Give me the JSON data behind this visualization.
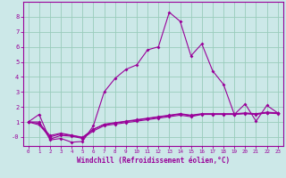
{
  "xlabel": "Windchill (Refroidissement éolien,°C)",
  "bg_color": "#cce8e8",
  "line_color": "#990099",
  "grid_color": "#99ccbb",
  "x_data": [
    0,
    1,
    2,
    3,
    4,
    5,
    6,
    7,
    8,
    9,
    10,
    11,
    12,
    13,
    14,
    15,
    16,
    17,
    18,
    19,
    20,
    21,
    22,
    23
  ],
  "series": [
    [
      1.0,
      1.5,
      -0.2,
      -0.1,
      -0.35,
      -0.3,
      0.75,
      3.0,
      3.9,
      4.5,
      4.8,
      5.8,
      6.0,
      8.3,
      7.7,
      5.4,
      6.2,
      4.4,
      3.5,
      1.5,
      2.2,
      1.05,
      2.1,
      1.6
    ],
    [
      1.0,
      1.0,
      -0.15,
      0.1,
      0.05,
      -0.1,
      0.4,
      0.75,
      0.85,
      0.95,
      1.05,
      1.15,
      1.25,
      1.35,
      1.45,
      1.35,
      1.5,
      1.5,
      1.5,
      1.5,
      1.55,
      1.5,
      1.6,
      1.55
    ],
    [
      1.0,
      0.8,
      0.0,
      0.2,
      0.1,
      -0.05,
      0.5,
      0.85,
      0.95,
      1.05,
      1.15,
      1.25,
      1.35,
      1.45,
      1.55,
      1.45,
      1.55,
      1.55,
      1.55,
      1.55,
      1.6,
      1.55,
      1.65,
      1.6
    ],
    [
      1.0,
      0.9,
      0.1,
      0.25,
      0.12,
      -0.02,
      0.52,
      0.82,
      0.92,
      1.02,
      1.12,
      1.22,
      1.32,
      1.42,
      1.52,
      1.42,
      1.52,
      1.52,
      1.52,
      1.52,
      1.57,
      1.52,
      1.62,
      1.57
    ]
  ],
  "xlim": [
    -0.5,
    23.5
  ],
  "ylim": [
    -0.6,
    9.0
  ],
  "yticks": [
    0,
    1,
    2,
    3,
    4,
    5,
    6,
    7,
    8
  ],
  "ytick_labels": [
    "-0",
    "1",
    "2",
    "3",
    "4",
    "5",
    "6",
    "7",
    "8"
  ],
  "xticks": [
    0,
    1,
    2,
    3,
    4,
    5,
    6,
    7,
    8,
    9,
    10,
    11,
    12,
    13,
    14,
    15,
    16,
    17,
    18,
    19,
    20,
    21,
    22,
    23
  ]
}
